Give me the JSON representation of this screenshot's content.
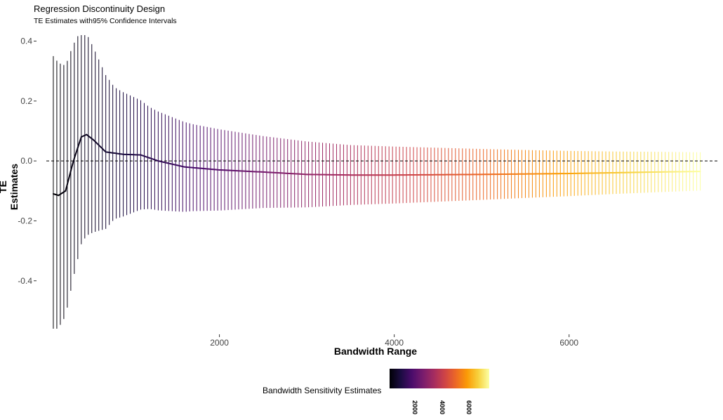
{
  "chart_data": {
    "type": "errorbar-line",
    "title": "Regression Discontinuity Design",
    "subtitle": "TE Estimates with95% Confidence Intervals",
    "xlabel": "Bandwidth Range",
    "ylabel": "TE Estimates",
    "xlim": [
      20,
      7600
    ],
    "ylim": [
      -0.56,
      0.42
    ],
    "x_ticks": [
      2000,
      4000,
      6000
    ],
    "x_tick_labels": [
      "2000",
      "4000",
      "6000"
    ],
    "y_ticks": [
      0.4,
      0.2,
      0.0,
      -0.2,
      -0.4
    ],
    "y_tick_labels": [
      "0.4",
      "0.2",
      "0.0",
      "-0.2",
      "-0.4"
    ],
    "reference_line": {
      "y": 0.0,
      "style": "dashed"
    },
    "bandwidth_range": [
      100,
      7500
    ],
    "bandwidth_step": 40,
    "estimate_curve": [
      {
        "x": 100,
        "y": -0.11
      },
      {
        "x": 160,
        "y": -0.115
      },
      {
        "x": 240,
        "y": -0.1
      },
      {
        "x": 330,
        "y": 0.0
      },
      {
        "x": 420,
        "y": 0.08
      },
      {
        "x": 480,
        "y": 0.088
      },
      {
        "x": 560,
        "y": 0.07
      },
      {
        "x": 700,
        "y": 0.03
      },
      {
        "x": 900,
        "y": 0.022
      },
      {
        "x": 1100,
        "y": 0.02
      },
      {
        "x": 1300,
        "y": 0.0
      },
      {
        "x": 1600,
        "y": -0.02
      },
      {
        "x": 2000,
        "y": -0.03
      },
      {
        "x": 2500,
        "y": -0.037
      },
      {
        "x": 3000,
        "y": -0.045
      },
      {
        "x": 3500,
        "y": -0.047
      },
      {
        "x": 4000,
        "y": -0.047
      },
      {
        "x": 5000,
        "y": -0.045
      },
      {
        "x": 6000,
        "y": -0.042
      },
      {
        "x": 7000,
        "y": -0.037
      },
      {
        "x": 7500,
        "y": -0.035
      }
    ],
    "ci_halfwidth_curve": [
      {
        "x": 100,
        "y": 0.46
      },
      {
        "x": 300,
        "y": 0.4
      },
      {
        "x": 500,
        "y": 0.33
      },
      {
        "x": 800,
        "y": 0.22
      },
      {
        "x": 1200,
        "y": 0.17
      },
      {
        "x": 1700,
        "y": 0.145
      },
      {
        "x": 2500,
        "y": 0.12
      },
      {
        "x": 3500,
        "y": 0.1
      },
      {
        "x": 4500,
        "y": 0.09
      },
      {
        "x": 5500,
        "y": 0.08
      },
      {
        "x": 6500,
        "y": 0.071
      },
      {
        "x": 7500,
        "y": 0.064
      }
    ],
    "color_scale": {
      "name": "inferno",
      "title": "Bandwidth Sensitivity Estimates",
      "domain": [
        100,
        7500
      ],
      "ticks": [
        2000,
        4000,
        6000
      ],
      "tick_labels": [
        "2000",
        "4000",
        "6000"
      ],
      "stops": [
        "#000004",
        "#1b0c41",
        "#4a0c6b",
        "#781c6d",
        "#a52c60",
        "#cf4446",
        "#ed6925",
        "#fb9b06",
        "#f7d13d",
        "#fcffa4"
      ]
    },
    "grid": false,
    "legend_position": "bottom"
  }
}
